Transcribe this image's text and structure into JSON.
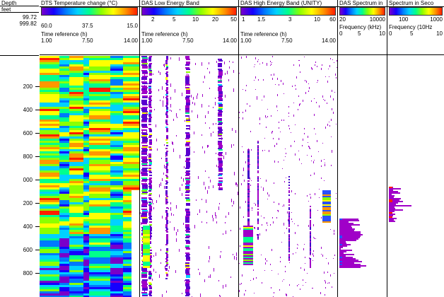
{
  "depth_track": {
    "header_label": "Depth",
    "unit_label": "feet",
    "top_value": "99.72",
    "bottom_value": "999.82",
    "ticks": [
      "200",
      "400",
      "600",
      "800",
      "000",
      "200",
      "400",
      "600",
      "800"
    ]
  },
  "tracks": [
    {
      "title": "DTS Temperature change (°C)",
      "scale": [
        "60.0",
        "37.5",
        "15.0"
      ],
      "sub_label": "Time reference (h)",
      "sub_scale": [
        "1.00",
        "7.50",
        "14.00"
      ]
    },
    {
      "title": "DAS Low Energy Band",
      "scale": [
        "2",
        "5",
        "10",
        "20",
        "50"
      ],
      "sub_label": "Time reference (h)",
      "sub_scale": [
        "1.00",
        "7.50",
        "14.00"
      ]
    },
    {
      "title": "DAS High Energy Band (UNITY)",
      "scale": [
        "1",
        "1.5",
        "3",
        "10",
        "60"
      ],
      "sub_label": "Time reference (h)",
      "sub_scale": [
        "1.00",
        "7.50",
        "14.00"
      ]
    },
    {
      "title": "DAS Spectrum in",
      "scale": [
        "20",
        "10000"
      ],
      "sub_label": "Frequency (kHz)",
      "sub_scale": [
        "0",
        "5",
        "10"
      ]
    },
    {
      "title": "Spectrum in Seco",
      "scale": [
        "100",
        "1000"
      ],
      "sub_label": "Frequency (10Hz",
      "sub_scale": [
        "0",
        "5",
        "10"
      ]
    }
  ],
  "colors": {
    "rainbow": [
      "#7a00c8",
      "#1400ff",
      "#0078ff",
      "#00d2ff",
      "#00ff8c",
      "#8cff00",
      "#ffff00",
      "#ff9600",
      "#ff1e00"
    ],
    "magenta": "#a000c8"
  }
}
